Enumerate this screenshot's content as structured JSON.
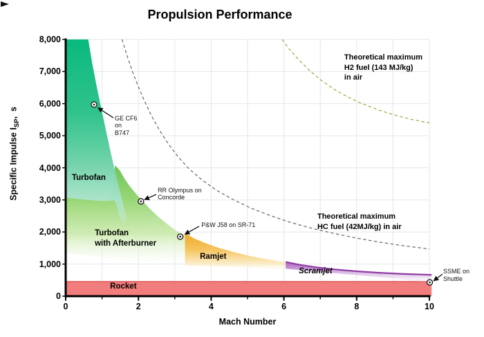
{
  "title": "Propulsion Performance",
  "axes": {
    "x": {
      "label": "Mach Number",
      "min": 0,
      "max": 10,
      "major_ticks": [
        {
          "value": 0,
          "label": "0"
        },
        {
          "value": 2,
          "label": "2"
        },
        {
          "value": 4,
          "label": "4"
        },
        {
          "value": 6,
          "label": "6"
        },
        {
          "value": 8,
          "label": "8"
        },
        {
          "value": 10,
          "label": "10"
        }
      ],
      "minor_ticks": [
        1,
        3,
        5,
        7,
        9
      ]
    },
    "y": {
      "label_prefix": "Specific Impulse I",
      "label_sub": "SP",
      "label_suffix": ",  s",
      "min": 0,
      "max": 8000,
      "ticks": [
        {
          "value": 8000,
          "label": "8,000"
        },
        {
          "value": 7000,
          "label": "7,000"
        },
        {
          "value": 6000,
          "label": "6,000"
        },
        {
          "value": 5000,
          "label": "5,000"
        },
        {
          "value": 4000,
          "label": "4,000"
        },
        {
          "value": 3000,
          "label": "3,000"
        },
        {
          "value": 2000,
          "label": "2,000"
        },
        {
          "value": 1000,
          "label": "1,000"
        },
        {
          "value": 0,
          "label": "0"
        }
      ]
    }
  },
  "colors": {
    "grid": "#e3e6e9",
    "axis": "#000000",
    "arrow": "#111111",
    "marker_fill": "#ffffff",
    "marker_stroke": "#111111",
    "hc_curve": "#666666",
    "h2_curve": "#a3a442"
  },
  "chart_data": {
    "type": "area",
    "title": "Propulsion Performance",
    "xlabel": "Mach Number",
    "ylabel": "Specific Impulse ISP, s",
    "xlim": [
      0,
      10
    ],
    "ylim": [
      0,
      8000
    ],
    "grid": true,
    "regions": [
      {
        "id": "afterburner",
        "label_lines": [
          "Turbofan",
          "with Afterburner"
        ],
        "label_pos": [
          0.8,
          2110
        ],
        "label_style": "bold",
        "stops": [
          [
            0,
            "#69c24d",
            0.95
          ],
          [
            0.35,
            "#93d46f",
            0.95
          ],
          [
            0.7,
            "#c9e9aa",
            0.88
          ],
          [
            1,
            "#f2f9e9",
            0.1
          ]
        ],
        "polygon": [
          [
            0,
            3100
          ],
          [
            0.55,
            3010
          ],
          [
            1.0,
            2990
          ],
          [
            1.22,
            3060
          ],
          [
            1.3,
            3320
          ],
          [
            1.36,
            4080
          ],
          [
            1.5,
            3900
          ],
          [
            1.63,
            3640
          ],
          [
            1.78,
            3400
          ],
          [
            1.95,
            3170
          ],
          [
            2.1,
            2980
          ],
          [
            2.32,
            2720
          ],
          [
            2.55,
            2470
          ],
          [
            2.8,
            2240
          ],
          [
            3.05,
            2030
          ],
          [
            3.28,
            1890
          ],
          [
            3.28,
            1160
          ],
          [
            3.0,
            1030
          ],
          [
            2.55,
            1030
          ],
          [
            2.05,
            1075
          ],
          [
            1.55,
            1130
          ],
          [
            1.0,
            1210
          ],
          [
            0.5,
            1280
          ],
          [
            0,
            1345
          ]
        ]
      },
      {
        "id": "turbofan",
        "label_lines": [
          "Turbofan"
        ],
        "label_pos": [
          0.17,
          3830
        ],
        "label_style": "bold",
        "stops": [
          [
            0,
            "#09b97d",
            1
          ],
          [
            0.4,
            "#31c38c",
            1
          ],
          [
            0.68,
            "#74d3ab",
            1
          ],
          [
            0.88,
            "#a9e3c9",
            0.95
          ],
          [
            1,
            "#c4ecd9",
            0.4
          ]
        ],
        "polygon": [
          [
            0,
            8000
          ],
          [
            0.62,
            8000
          ],
          [
            0.73,
            7250
          ],
          [
            0.85,
            6550
          ],
          [
            0.98,
            5850
          ],
          [
            1.11,
            5150
          ],
          [
            1.24,
            4470
          ],
          [
            1.37,
            3830
          ],
          [
            1.49,
            3280
          ],
          [
            1.59,
            2830
          ],
          [
            1.67,
            2430
          ],
          [
            1.63,
            2280
          ],
          [
            1.52,
            2350
          ],
          [
            1.45,
            2550
          ],
          [
            1.41,
            2800
          ],
          [
            1.34,
            2980
          ],
          [
            1.05,
            2960
          ],
          [
            0.6,
            3000
          ],
          [
            0.3,
            3030
          ],
          [
            0,
            3080
          ]
        ]
      },
      {
        "id": "ramjet",
        "label_lines": [
          "Ramjet"
        ],
        "label_pos": [
          3.69,
          1380
        ],
        "label_style": "bold",
        "stops": [
          [
            0,
            "#f0a827",
            1
          ],
          [
            0.45,
            "#f6c35b",
            0.97
          ],
          [
            0.78,
            "#fae3ad",
            0.85
          ],
          [
            1,
            "#fdf6e3",
            0.2
          ]
        ],
        "polygon": [
          [
            3.28,
            1960
          ],
          [
            3.55,
            1790
          ],
          [
            3.85,
            1650
          ],
          [
            4.2,
            1510
          ],
          [
            4.6,
            1380
          ],
          [
            5.05,
            1255
          ],
          [
            5.5,
            1155
          ],
          [
            5.95,
            1075
          ],
          [
            6.14,
            1045
          ],
          [
            6.14,
            815
          ],
          [
            5.6,
            855
          ],
          [
            5.0,
            890
          ],
          [
            4.35,
            915
          ],
          [
            3.75,
            935
          ],
          [
            3.28,
            950
          ]
        ]
      },
      {
        "id": "rocket",
        "label_lines": [
          "Rocket"
        ],
        "label_pos": [
          1.22,
          453
        ],
        "label_style": "bold",
        "stops": [
          [
            0,
            "#f17d7c",
            1
          ],
          [
            1,
            "#f17d7c",
            1
          ]
        ],
        "edge_count": 2,
        "edge_color": "#dd5e5f",
        "edge_width": 1.6,
        "polygon": [
          [
            0,
            455
          ],
          [
            10.06,
            455
          ],
          [
            10.06,
            0
          ],
          [
            0,
            0
          ]
        ]
      },
      {
        "id": "scramjet",
        "label_lines": [
          "Scramjet"
        ],
        "label_pos": [
          6.41,
          927
        ],
        "label_style": "bold-italic",
        "stops": [
          [
            0,
            "#aa5cc0",
            0.95
          ],
          [
            0.4,
            "#c795d6",
            0.85
          ],
          [
            0.75,
            "#e6d3ee",
            0.65
          ],
          [
            1,
            "#f6f0fa",
            0.15
          ]
        ],
        "edge_count": 8,
        "edge_color": "#8e3aa3",
        "edge_width": 2.2,
        "polygon": [
          [
            6.05,
            1065
          ],
          [
            6.45,
            975
          ],
          [
            6.9,
            900
          ],
          [
            7.4,
            835
          ],
          [
            7.95,
            780
          ],
          [
            8.6,
            730
          ],
          [
            9.3,
            692
          ],
          [
            10.06,
            665
          ],
          [
            10.06,
            425
          ],
          [
            9.4,
            505
          ],
          [
            8.6,
            595
          ],
          [
            7.8,
            675
          ],
          [
            7.1,
            745
          ],
          [
            6.5,
            805
          ],
          [
            6.05,
            855
          ]
        ]
      }
    ],
    "curves": [
      {
        "id": "hc-max",
        "label_lines": [
          "Theoretical maximum",
          "HC fuel (42MJ/kg) in air"
        ],
        "label_pos": [
          6.92,
          2630
        ],
        "color": "#666666",
        "dash": "4.5 3.5",
        "points": [
          [
            1.55,
            8000
          ],
          [
            1.68,
            7520
          ],
          [
            1.82,
            7050
          ],
          [
            1.98,
            6580
          ],
          [
            2.15,
            6120
          ],
          [
            2.35,
            5640
          ],
          [
            2.58,
            5170
          ],
          [
            2.83,
            4730
          ],
          [
            3.1,
            4330
          ],
          [
            3.4,
            3960
          ],
          [
            3.75,
            3620
          ],
          [
            4.15,
            3300
          ],
          [
            4.6,
            3010
          ],
          [
            5.1,
            2740
          ],
          [
            5.6,
            2520
          ],
          [
            6.15,
            2310
          ],
          [
            6.75,
            2120
          ],
          [
            7.35,
            1960
          ],
          [
            8.0,
            1810
          ],
          [
            8.65,
            1680
          ],
          [
            9.3,
            1570
          ],
          [
            10,
            1470
          ]
        ]
      },
      {
        "id": "h2-max",
        "label_lines": [
          "Theoretical maximum",
          "H2 fuel (143 MJ/kg)",
          "in air"
        ],
        "label_pos": [
          7.66,
          7590
        ],
        "color": "#a3a442",
        "dash": "4.5 3.5",
        "points": [
          [
            5.95,
            8000
          ],
          [
            6.15,
            7700
          ],
          [
            6.4,
            7380
          ],
          [
            6.7,
            7040
          ],
          [
            7.0,
            6750
          ],
          [
            7.35,
            6470
          ],
          [
            7.75,
            6210
          ],
          [
            8.15,
            6000
          ],
          [
            8.6,
            5800
          ],
          [
            9.05,
            5640
          ],
          [
            9.5,
            5510
          ],
          [
            10,
            5400
          ]
        ]
      }
    ],
    "engine_points": [
      {
        "id": "ge-cf6",
        "point": [
          0.78,
          5970
        ],
        "label_lines": [
          "GE CF6",
          "on",
          "B747"
        ],
        "label_pos": [
          1.35,
          5660
        ],
        "arrow": [
          [
            1.31,
            5560
          ],
          [
            0.89,
            5870
          ]
        ]
      },
      {
        "id": "rr-olympus",
        "point": [
          2.07,
          2955
        ],
        "label_lines": [
          "RR Olympus on",
          "Concorde"
        ],
        "label_pos": [
          2.53,
          3410
        ],
        "arrow": [
          [
            2.49,
            3170
          ],
          [
            2.17,
            3010
          ]
        ]
      },
      {
        "id": "pw-j58",
        "point": [
          3.15,
          1855
        ],
        "label_lines": [
          "P&W J58 on SR-71"
        ],
        "label_pos": [
          3.73,
          2330
        ],
        "arrow": [
          [
            3.67,
            2180
          ],
          [
            3.28,
            1930
          ]
        ]
      },
      {
        "id": "ssme",
        "point": [
          10.01,
          430
        ],
        "label_lines": [
          "SSME on",
          "Shuttle"
        ],
        "label_pos": [
          10.38,
          884
        ],
        "arrow": [
          [
            10.36,
            690
          ],
          [
            10.12,
            480
          ]
        ]
      }
    ]
  }
}
